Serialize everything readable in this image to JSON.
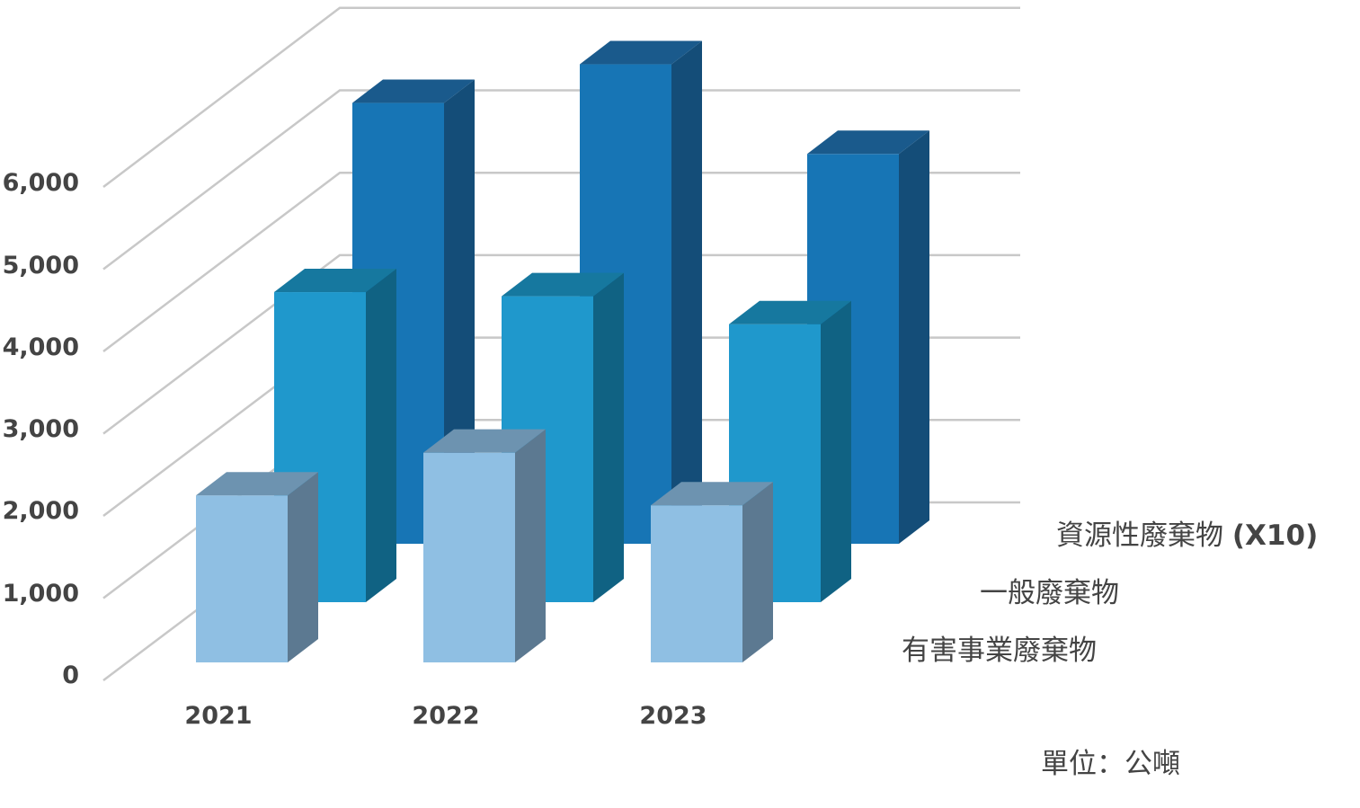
{
  "chart_data": {
    "type": "bar",
    "style": "3d-column",
    "title": "",
    "xlabel": "",
    "ylabel": "",
    "unit_note": "單位：公噸",
    "categories": [
      "2021",
      "2022",
      "2023"
    ],
    "yticks": [
      "0",
      "1,000",
      "2,000",
      "3,000",
      "4,000",
      "5,000",
      "6,000"
    ],
    "ylim": [
      0,
      6000
    ],
    "grid": true,
    "legend_position": "right-depth-labels",
    "series": [
      {
        "name": "有害事業廢棄物",
        "values": [
          2030,
          2550,
          1910
        ],
        "color": "#8fbfe3",
        "side": "#5c7991",
        "top": "#6d93b0"
      },
      {
        "name": "一般廢棄物",
        "values": [
          3770,
          3720,
          3380
        ],
        "color": "#1f98cc",
        "side": "#106283",
        "top": "#16789f"
      },
      {
        "name": "資源性廢棄物 (X10)",
        "values": [
          5360,
          5830,
          4740
        ],
        "color": "#1775b5",
        "side": "#144d78",
        "top": "#1a5a8c"
      }
    ]
  },
  "legend": {
    "series3_label": "資源性廢棄物",
    "series3_suffix": "(X10)",
    "series2_label": "一般廢棄物",
    "series1_label": "有害事業廢棄物"
  },
  "unit": "單位：公噸"
}
